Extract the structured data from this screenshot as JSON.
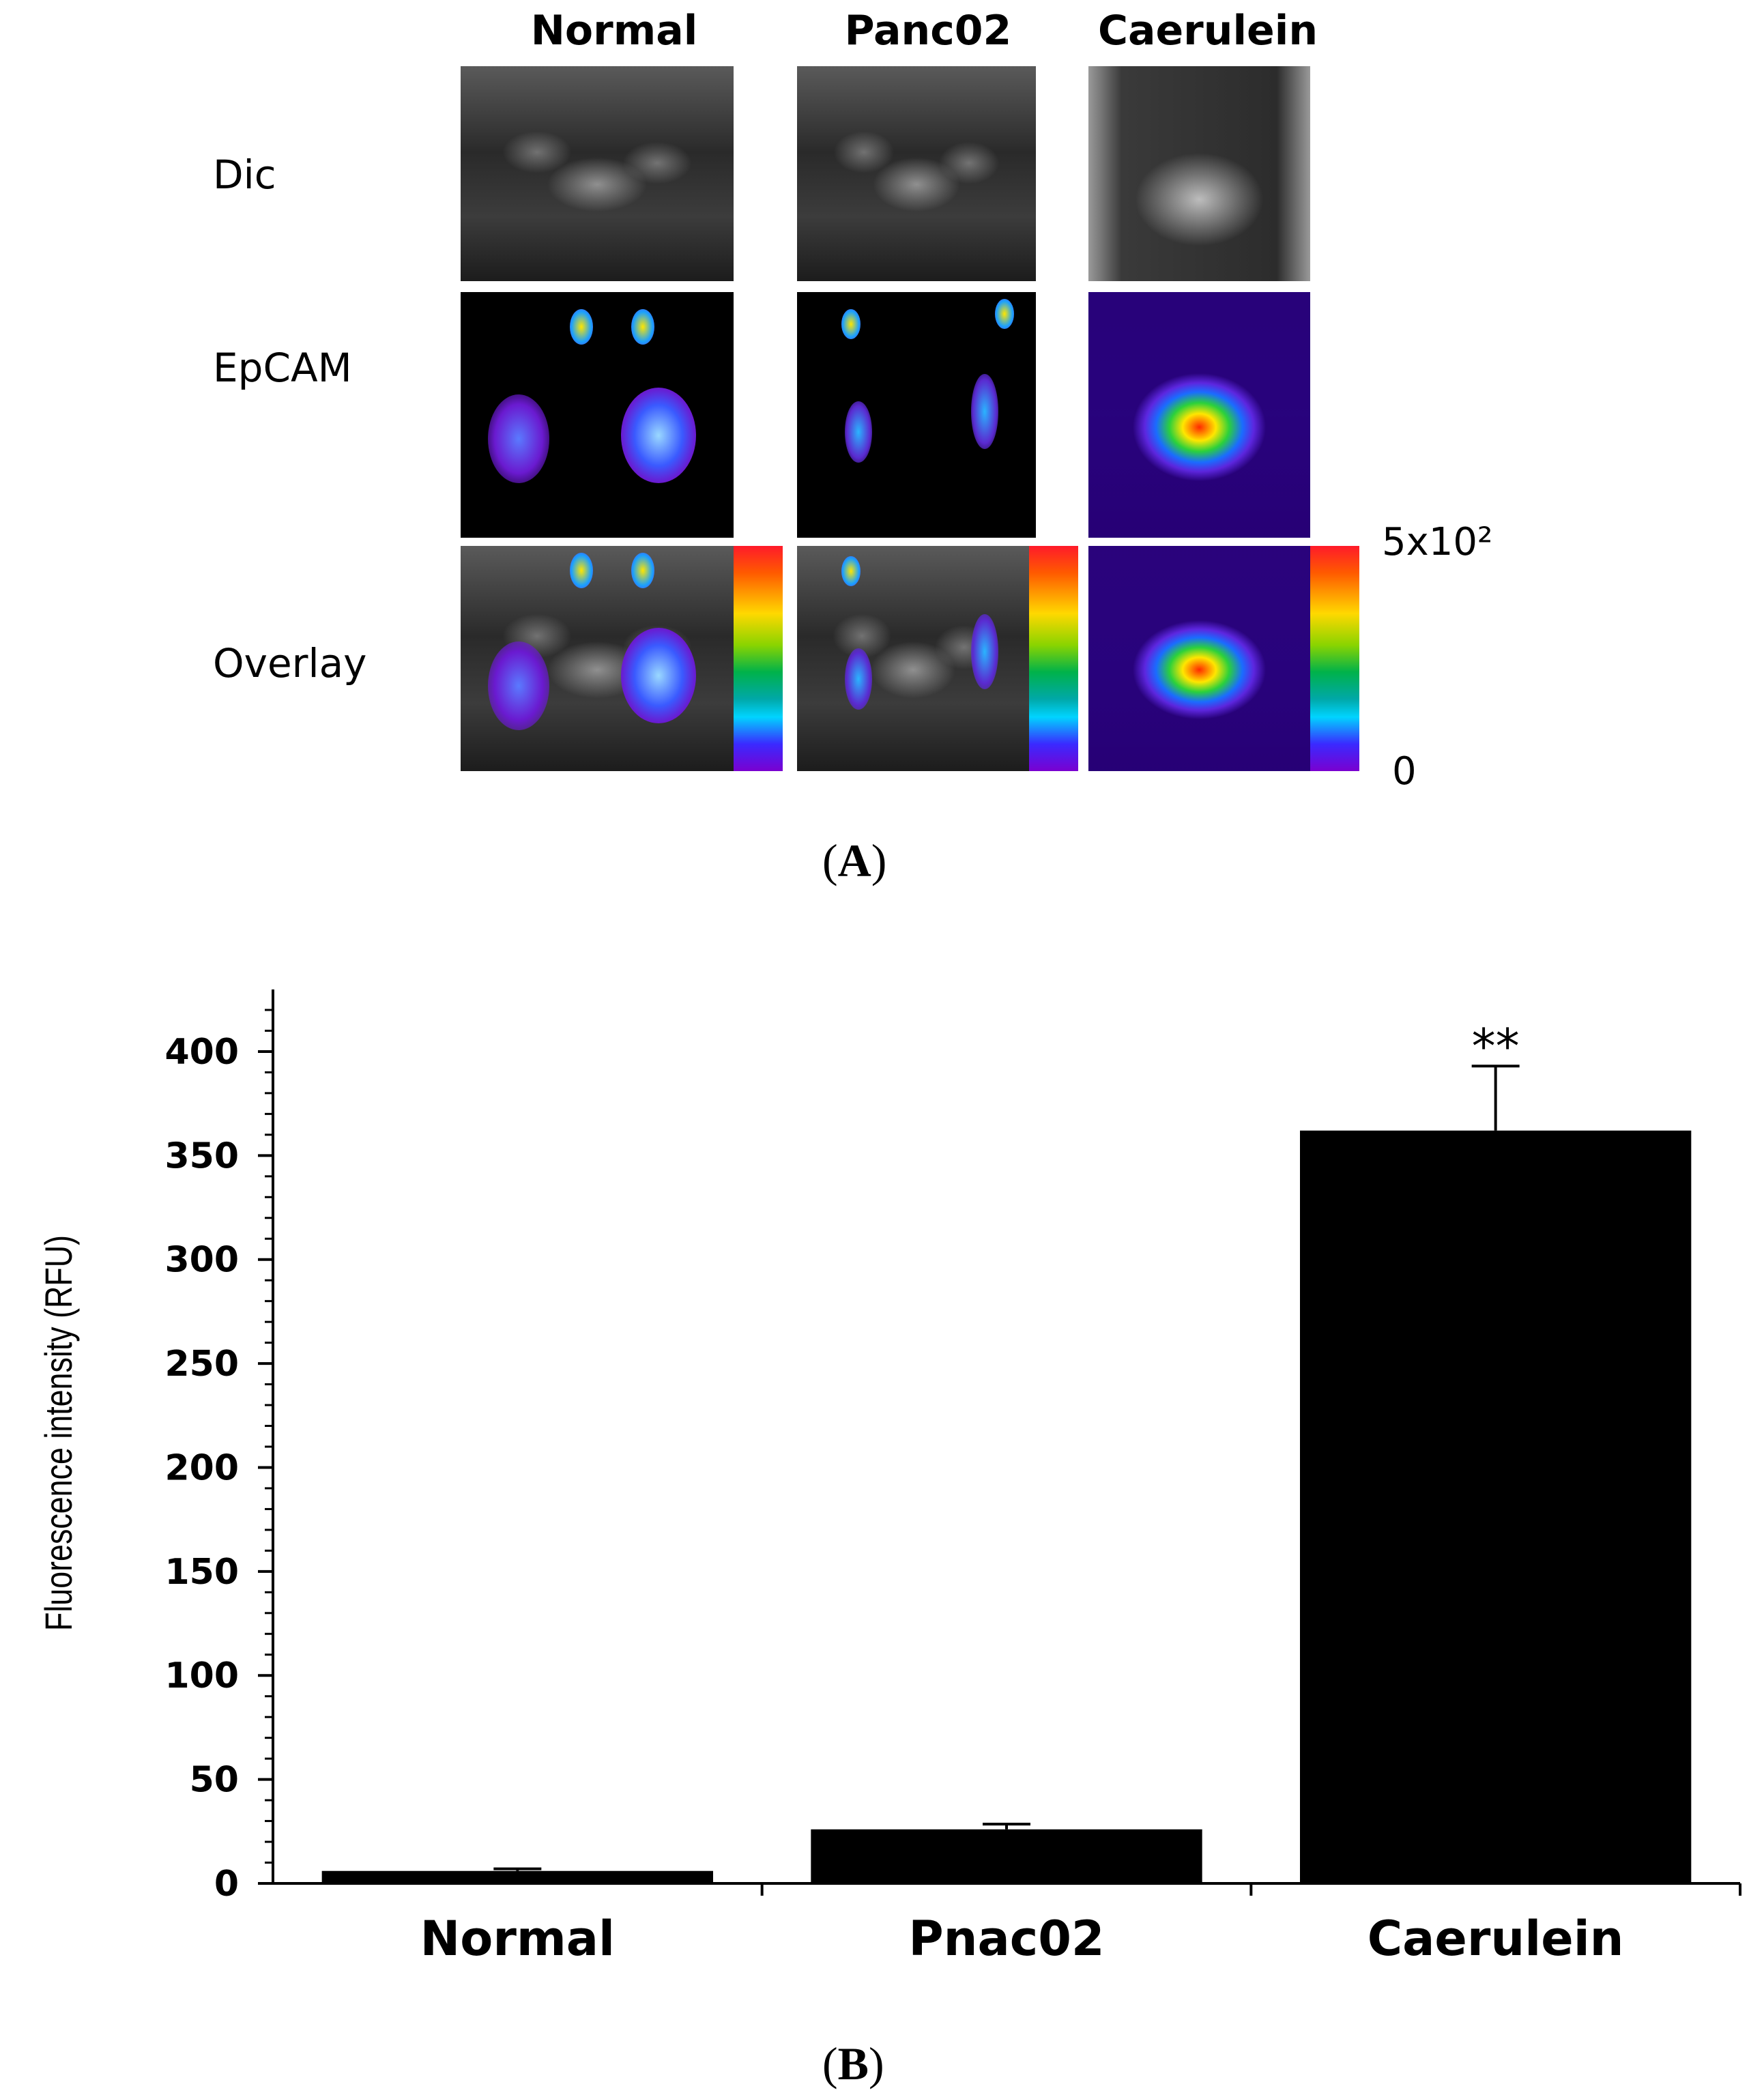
{
  "panel_a": {
    "columns": [
      "Normal",
      "Panc02",
      "Caerulein"
    ],
    "rows": [
      "Dic",
      "EpCAM",
      "Overlay"
    ],
    "scale_max_label": "5x10²",
    "scale_min_label": "0",
    "panel_label": "A"
  },
  "panel_b": {
    "panel_label": "B",
    "significance_label": "**"
  },
  "chart_data": {
    "type": "bar",
    "categories": [
      "Normal",
      "Pnac02",
      "Caerulein"
    ],
    "values": [
      6,
      26,
      362
    ],
    "errors": [
      1,
      2.5,
      31
    ],
    "significance": [
      "",
      "",
      "**"
    ],
    "title": "",
    "xlabel": "",
    "ylabel": "Fluorescence intensity (RFU)",
    "ylim": [
      0,
      420
    ],
    "yticks": [
      0,
      50,
      100,
      150,
      200,
      250,
      300,
      350,
      400
    ],
    "bar_color": "#000000",
    "grid": false
  }
}
